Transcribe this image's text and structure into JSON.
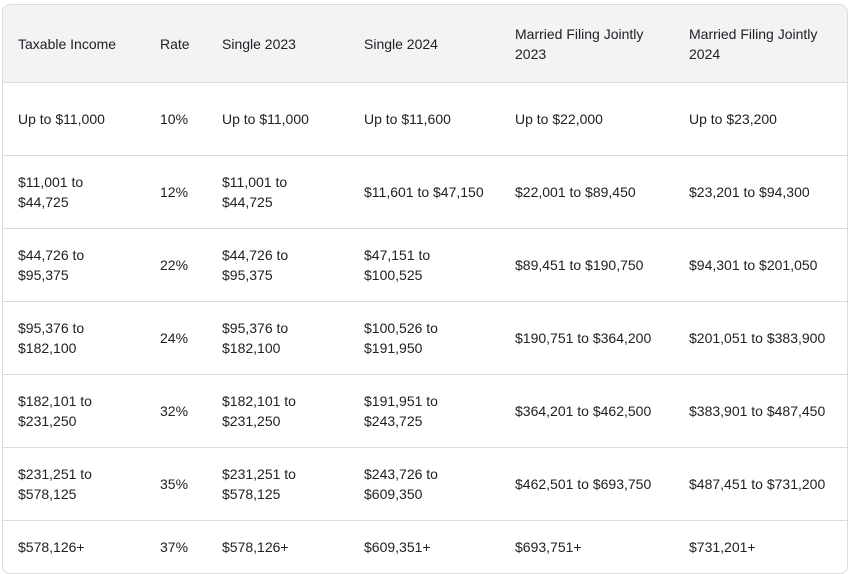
{
  "table": {
    "header": [
      "Taxable Income",
      "Rate",
      "Single 2023",
      "Single 2024",
      "Married Filing Jointly 2023",
      "Married Filing Jointly 2024"
    ],
    "rows": [
      [
        "Up to $11,000",
        "10%",
        "Up to $11,000",
        "Up to $11,600",
        "Up to $22,000",
        "Up to $23,200"
      ],
      [
        "$11,001 to $44,725",
        "12%",
        "$11,001 to $44,725",
        "$11,601 to $47,150",
        "$22,001 to $89,450",
        "$23,201 to $94,300"
      ],
      [
        "$44,726 to $95,375",
        "22%",
        "$44,726 to $95,375",
        "$47,151 to $100,525",
        "$89,451 to $190,750",
        "$94,301 to $201,050"
      ],
      [
        "$95,376 to $182,100",
        "24%",
        "$95,376 to $182,100",
        "$100,526 to $191,950",
        "$190,751 to $364,200",
        "$201,051 to $383,900"
      ],
      [
        "$182,101 to $231,250",
        "32%",
        "$182,101 to $231,250",
        "$191,951 to $243,725",
        "$364,201 to $462,500",
        "$383,901 to $487,450"
      ],
      [
        "$231,251 to $578,125",
        "35%",
        "$231,251 to $578,125",
        "$243,726 to $609,350",
        "$462,501 to $693,750",
        "$487,451 to $731,200"
      ],
      [
        "$578,126+",
        "37%",
        "$578,126+",
        "$609,351+",
        "$693,751+",
        "$731,201+"
      ]
    ]
  }
}
